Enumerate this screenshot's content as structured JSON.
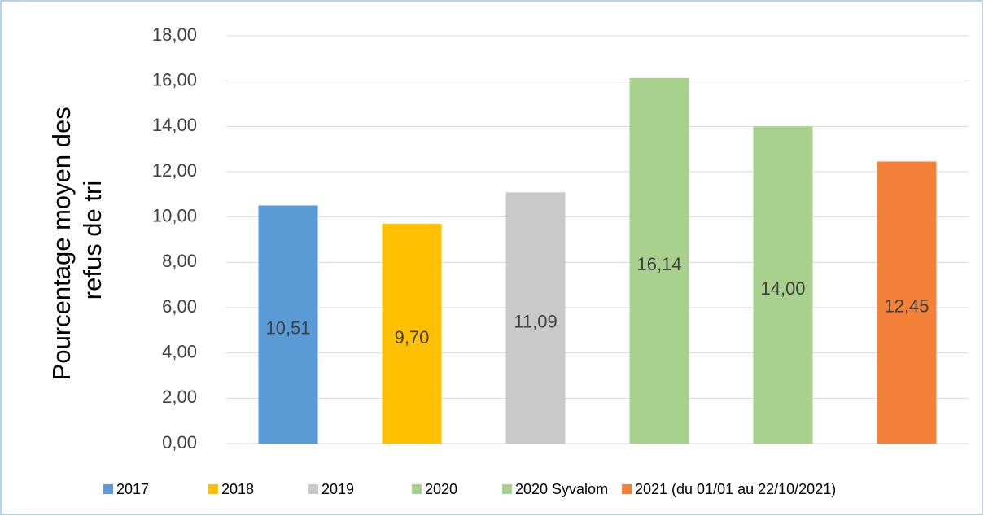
{
  "chart_data": {
    "type": "bar",
    "y_label": [
      "Pourcentage moyen des",
      "refus de tri"
    ],
    "categories": [
      "2017",
      "2018",
      "2019",
      "2020",
      "2020 Syvalom",
      "2021 (du 01/01 au 22/10/2021)"
    ],
    "values": [
      10.51,
      9.7,
      11.09,
      16.14,
      14.0,
      12.45
    ],
    "value_labels": [
      "10,51",
      "9,70",
      "11,09",
      "16,14",
      "14,00",
      "12,45"
    ],
    "colors": [
      "#5b9bd5",
      "#ffc000",
      "#c9c9c9",
      "#a9d18e",
      "#a9d18e",
      "#f4813a"
    ],
    "ylim": [
      0,
      18
    ],
    "yticks": [
      {
        "value": 0,
        "label": "0,00"
      },
      {
        "value": 2,
        "label": "2,00"
      },
      {
        "value": 4,
        "label": "4,00"
      },
      {
        "value": 6,
        "label": "6,00"
      },
      {
        "value": 8,
        "label": "8,00"
      },
      {
        "value": 10,
        "label": "10,00"
      },
      {
        "value": 12,
        "label": "12,00"
      },
      {
        "value": 14,
        "label": "14,00"
      },
      {
        "value": 16,
        "label": "16,00"
      },
      {
        "value": 18,
        "label": "18,00"
      }
    ],
    "grid": true,
    "legend": "bottom"
  }
}
